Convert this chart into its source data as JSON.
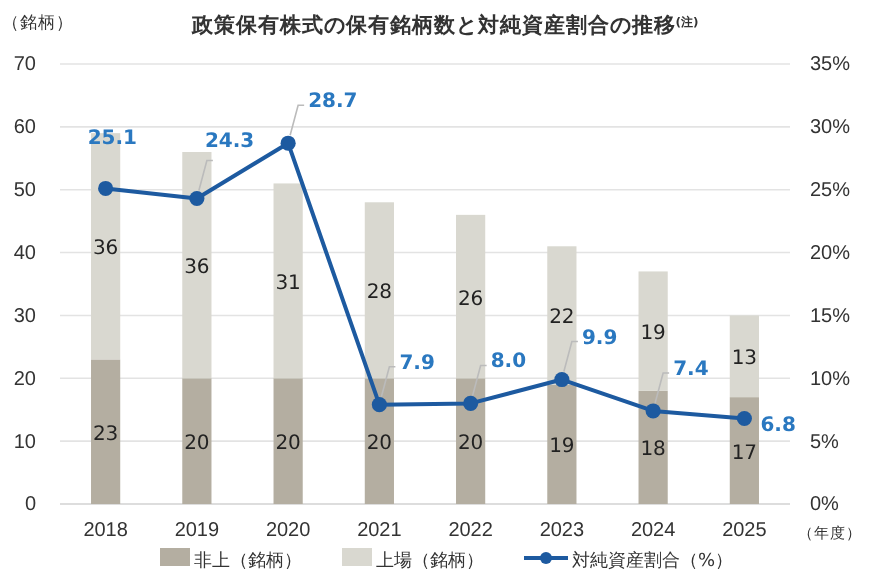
{
  "chart_data": {
    "type": "bar",
    "title": "政策保有株式の保有銘柄数と対純資産割合の推移$^{(注)}$",
    "ylabel": "（銘柄）",
    "xlabel": "（年度）",
    "categories": [
      "2018",
      "2019",
      "2020",
      "2021",
      "2022",
      "2023",
      "2024",
      "2025"
    ],
    "stacked": true,
    "data_labels": true,
    "grid": "y",
    "legend": "bottom",
    "marker": "circle",
    "series": [
      {
        "name": "非上（銘柄）",
        "color": "#b4aea1",
        "values": [
          23,
          20,
          20,
          20,
          20,
          19,
          18,
          17
        ]
      },
      {
        "name": "上場（銘柄）",
        "color": "#d9d8d0",
        "values": [
          36,
          36,
          31,
          28,
          26,
          22,
          19,
          13
        ]
      },
      {
        "name": "対純資産割合（%）",
        "type": "line",
        "axis": "y2",
        "color": "#1d5aa0",
        "values": [
          25.1,
          24.3,
          28.7,
          7.9,
          8.0,
          9.9,
          7.4,
          6.8
        ],
        "value_labels": [
          "25.1",
          "24.3",
          "28.7",
          "7.9",
          "8.0",
          "9.9",
          "7.4",
          "6.8"
        ]
      }
    ],
    "ylim": [
      0,
      70
    ],
    "yticks": [
      0,
      10,
      20,
      30,
      40,
      50,
      60,
      70
    ],
    "y2lim": [
      0,
      35
    ],
    "y2ticks": [
      {
        "value": 0,
        "label": "0%"
      },
      {
        "value": 5,
        "label": "5%"
      },
      {
        "value": 10,
        "label": "10%"
      },
      {
        "value": 15,
        "label": "15%"
      },
      {
        "value": 20,
        "label": "20%"
      },
      {
        "value": 25,
        "label": "25%"
      },
      {
        "value": 30,
        "label": "30%"
      },
      {
        "value": 35,
        "label": "35%"
      }
    ]
  }
}
